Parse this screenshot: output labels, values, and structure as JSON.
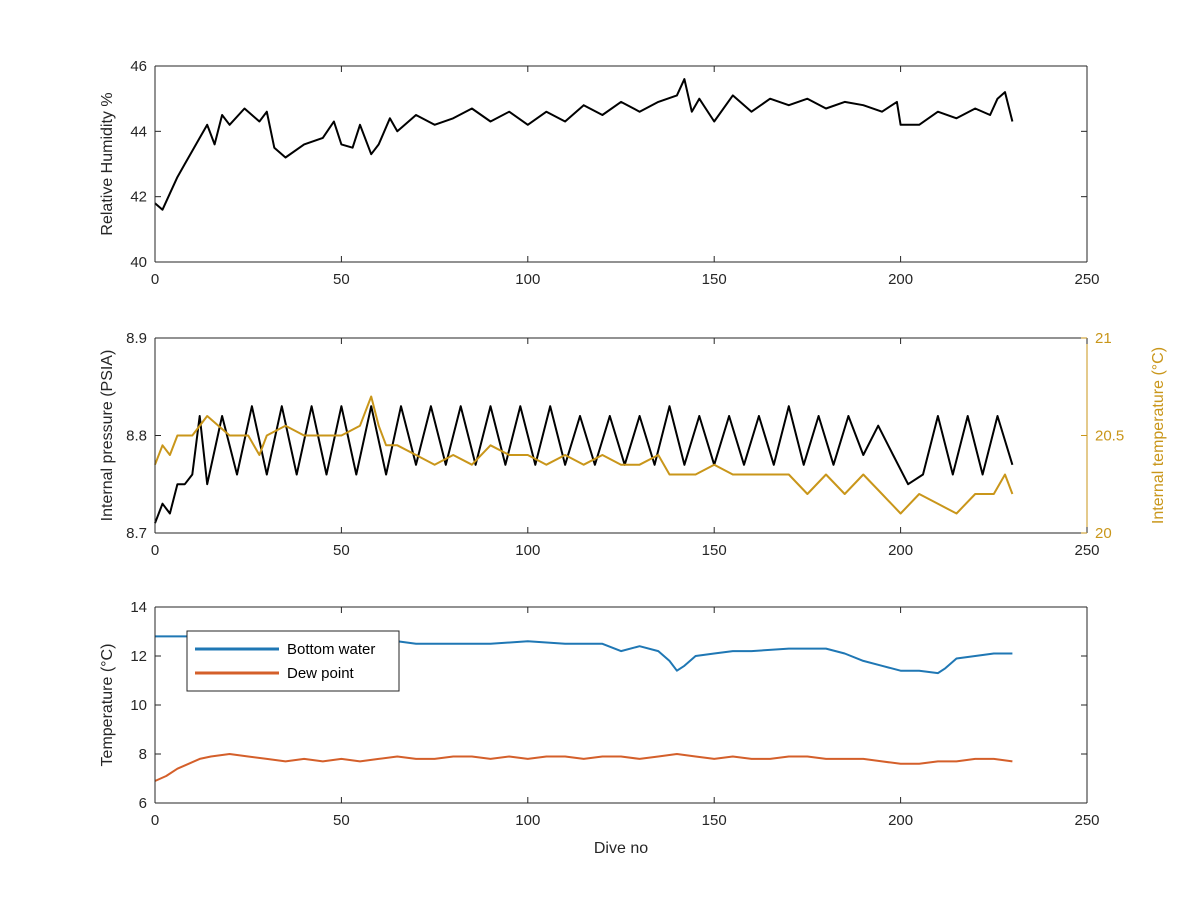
{
  "colors": {
    "black_series": "#000000",
    "gold_series": "#c9961a",
    "blue_series": "#1f77b4",
    "orange_series": "#d45f2a",
    "axis": "#262626"
  },
  "chart_data": [
    {
      "type": "line",
      "title": "",
      "xlabel": "",
      "ylabel": "Relative Humidity %",
      "xlim": [
        0,
        250
      ],
      "ylim": [
        40,
        46
      ],
      "xticks": [
        "0",
        "50",
        "100",
        "150",
        "200",
        "250"
      ],
      "yticks": [
        "40",
        "42",
        "44",
        "46"
      ],
      "grid": false,
      "series": [
        {
          "color": "#000000",
          "x": [
            0,
            2,
            4,
            6,
            8,
            10,
            12,
            14,
            16,
            18,
            20,
            24,
            28,
            30,
            32,
            35,
            40,
            45,
            48,
            50,
            53,
            55,
            58,
            60,
            63,
            65,
            70,
            75,
            80,
            85,
            90,
            95,
            100,
            105,
            110,
            115,
            120,
            125,
            130,
            135,
            140,
            142,
            144,
            146,
            150,
            155,
            160,
            165,
            170,
            175,
            180,
            185,
            190,
            195,
            199,
            200,
            205,
            210,
            215,
            220,
            224,
            226,
            228,
            230
          ],
          "y": [
            41.8,
            41.6,
            42.1,
            42.6,
            43.0,
            43.4,
            43.8,
            44.2,
            43.6,
            44.5,
            44.2,
            44.7,
            44.3,
            44.6,
            43.5,
            43.2,
            43.6,
            43.8,
            44.3,
            43.6,
            43.5,
            44.2,
            43.3,
            43.6,
            44.4,
            44.0,
            44.5,
            44.2,
            44.4,
            44.7,
            44.3,
            44.6,
            44.2,
            44.6,
            44.3,
            44.8,
            44.5,
            44.9,
            44.6,
            44.9,
            45.1,
            45.6,
            44.6,
            45.0,
            44.3,
            45.1,
            44.6,
            45.0,
            44.8,
            45.0,
            44.7,
            44.9,
            44.8,
            44.6,
            44.9,
            44.2,
            44.2,
            44.6,
            44.4,
            44.7,
            44.5,
            45.0,
            45.2,
            44.3
          ]
        }
      ]
    },
    {
      "type": "line",
      "title": "",
      "xlabel": "",
      "ylabel": "Internal pressure (PSIA)",
      "ylabel_right": "Internal temperature (°C)",
      "xlim": [
        0,
        250
      ],
      "ylim": [
        8.7,
        8.9
      ],
      "ylim_right": [
        20,
        21
      ],
      "xticks": [
        "0",
        "50",
        "100",
        "150",
        "200",
        "250"
      ],
      "yticks": [
        "8.7",
        "8.8",
        "8.9"
      ],
      "yticks_right": [
        "20",
        "20.5",
        "21"
      ],
      "grid": false,
      "series": [
        {
          "axis": "left",
          "color": "#000000",
          "x": [
            0,
            2,
            4,
            6,
            8,
            10,
            12,
            14,
            18,
            22,
            26,
            30,
            34,
            38,
            42,
            46,
            50,
            54,
            58,
            62,
            66,
            70,
            74,
            78,
            82,
            86,
            90,
            94,
            98,
            102,
            106,
            110,
            114,
            118,
            122,
            126,
            130,
            134,
            138,
            142,
            146,
            150,
            154,
            158,
            162,
            166,
            170,
            174,
            178,
            182,
            186,
            190,
            194,
            198,
            202,
            206,
            210,
            214,
            218,
            222,
            226,
            230
          ],
          "y": [
            8.71,
            8.73,
            8.72,
            8.75,
            8.75,
            8.76,
            8.82,
            8.75,
            8.82,
            8.76,
            8.83,
            8.76,
            8.83,
            8.76,
            8.83,
            8.76,
            8.83,
            8.76,
            8.83,
            8.76,
            8.83,
            8.77,
            8.83,
            8.77,
            8.83,
            8.77,
            8.83,
            8.77,
            8.83,
            8.77,
            8.83,
            8.77,
            8.82,
            8.77,
            8.82,
            8.77,
            8.82,
            8.77,
            8.83,
            8.77,
            8.82,
            8.77,
            8.82,
            8.77,
            8.82,
            8.77,
            8.83,
            8.77,
            8.82,
            8.77,
            8.82,
            8.78,
            8.81,
            8.78,
            8.75,
            8.76,
            8.82,
            8.76,
            8.82,
            8.76,
            8.82,
            8.77
          ]
        },
        {
          "axis": "right",
          "color": "#c9961a",
          "x": [
            0,
            2,
            4,
            6,
            8,
            10,
            14,
            20,
            25,
            28,
            30,
            35,
            40,
            45,
            50,
            55,
            58,
            60,
            62,
            65,
            70,
            75,
            80,
            85,
            90,
            95,
            100,
            105,
            110,
            115,
            120,
            125,
            130,
            135,
            138,
            140,
            145,
            150,
            155,
            160,
            165,
            170,
            175,
            180,
            185,
            190,
            195,
            200,
            205,
            210,
            215,
            220,
            225,
            228,
            230
          ],
          "y": [
            20.35,
            20.45,
            20.4,
            20.5,
            20.5,
            20.5,
            20.6,
            20.5,
            20.5,
            20.4,
            20.5,
            20.55,
            20.5,
            20.5,
            20.5,
            20.55,
            20.7,
            20.55,
            20.45,
            20.45,
            20.4,
            20.35,
            20.4,
            20.35,
            20.45,
            20.4,
            20.4,
            20.35,
            20.4,
            20.35,
            20.4,
            20.35,
            20.35,
            20.4,
            20.3,
            20.3,
            20.3,
            20.35,
            20.3,
            20.3,
            20.3,
            20.3,
            20.2,
            20.3,
            20.2,
            20.3,
            20.2,
            20.1,
            20.2,
            20.15,
            20.1,
            20.2,
            20.2,
            20.3,
            20.2
          ]
        }
      ]
    },
    {
      "type": "line",
      "title": "",
      "xlabel": "Dive no",
      "ylabel": "Temperature (°C)",
      "xlim": [
        0,
        250
      ],
      "ylim": [
        6,
        14
      ],
      "xticks": [
        "0",
        "50",
        "100",
        "150",
        "200",
        "250"
      ],
      "yticks": [
        "6",
        "8",
        "10",
        "12",
        "14"
      ],
      "grid": false,
      "legend_position": "top-left",
      "series": [
        {
          "name": "Bottom water",
          "color": "#1f77b4",
          "x": [
            0,
            10,
            20,
            30,
            40,
            50,
            60,
            65,
            70,
            80,
            90,
            100,
            110,
            120,
            125,
            130,
            135,
            138,
            140,
            142,
            145,
            150,
            155,
            160,
            170,
            180,
            185,
            190,
            195,
            200,
            205,
            210,
            212,
            215,
            220,
            225,
            230
          ],
          "y": [
            12.8,
            12.8,
            12.8,
            12.8,
            12.8,
            12.7,
            12.7,
            12.6,
            12.5,
            12.5,
            12.5,
            12.6,
            12.5,
            12.5,
            12.2,
            12.4,
            12.2,
            11.8,
            11.4,
            11.6,
            12.0,
            12.1,
            12.2,
            12.2,
            12.3,
            12.3,
            12.1,
            11.8,
            11.6,
            11.4,
            11.4,
            11.3,
            11.5,
            11.9,
            12.0,
            12.1,
            12.1
          ]
        },
        {
          "name": "Dew point",
          "color": "#d45f2a",
          "x": [
            0,
            3,
            6,
            9,
            12,
            15,
            20,
            25,
            30,
            35,
            40,
            45,
            50,
            55,
            60,
            65,
            70,
            75,
            80,
            85,
            90,
            95,
            100,
            105,
            110,
            115,
            120,
            125,
            130,
            135,
            140,
            145,
            150,
            155,
            160,
            165,
            170,
            175,
            180,
            185,
            190,
            195,
            200,
            205,
            210,
            215,
            220,
            225,
            230
          ],
          "y": [
            6.9,
            7.1,
            7.4,
            7.6,
            7.8,
            7.9,
            8.0,
            7.9,
            7.8,
            7.7,
            7.8,
            7.7,
            7.8,
            7.7,
            7.8,
            7.9,
            7.8,
            7.8,
            7.9,
            7.9,
            7.8,
            7.9,
            7.8,
            7.9,
            7.9,
            7.8,
            7.9,
            7.9,
            7.8,
            7.9,
            8.0,
            7.9,
            7.8,
            7.9,
            7.8,
            7.8,
            7.9,
            7.9,
            7.8,
            7.8,
            7.8,
            7.7,
            7.6,
            7.6,
            7.7,
            7.7,
            7.8,
            7.8,
            7.7
          ]
        }
      ]
    }
  ]
}
